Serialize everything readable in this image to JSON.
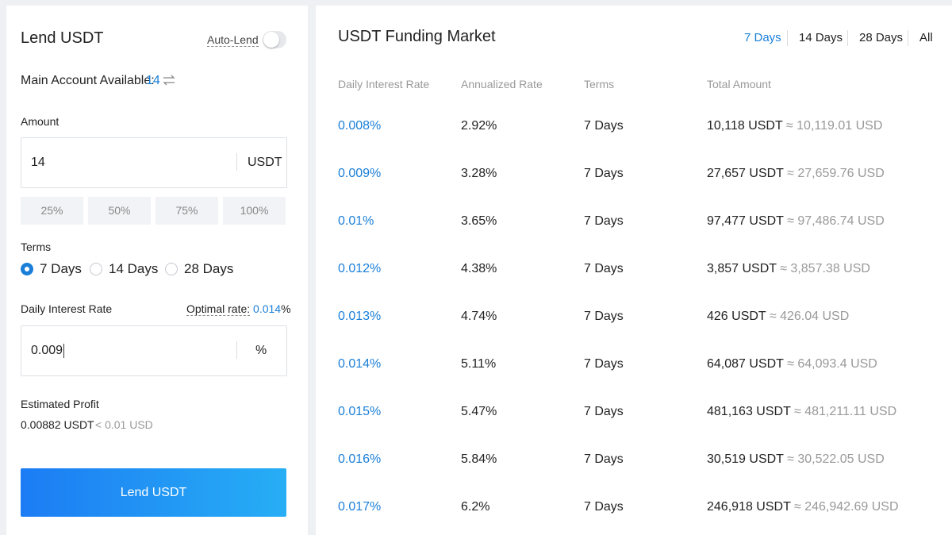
{
  "lend_panel": {
    "title": "Lend USDT",
    "auto_lend": "Auto-Lend",
    "account_label": "Main Account Available:",
    "account_value": "14",
    "amount_label": "Amount",
    "amount_value": "14",
    "amount_unit": "USDT",
    "percent_buttons": [
      "25%",
      "50%",
      "75%",
      "100%"
    ],
    "terms_label": "Terms",
    "terms_options": [
      "7 Days",
      "14 Days",
      "28 Days"
    ],
    "rate_label": "Daily Interest Rate",
    "optimal_label": "Optimal rate:",
    "optimal_value": "0.014",
    "optimal_unit": "%",
    "rate_value": "0.009",
    "rate_unit": "%",
    "profit_label": "Estimated Profit",
    "profit_value": "0.00882 USDT",
    "profit_usd": "< 0.01 USD",
    "button": "Lend USDT"
  },
  "market": {
    "title": "USDT Funding Market",
    "tabs": [
      "7 Days",
      "14 Days",
      "28 Days",
      "All"
    ],
    "columns": [
      "Daily Interest Rate",
      "Annualized Rate",
      "Terms",
      "Total Amount"
    ],
    "rows": [
      [
        "0.008%",
        "2.92%",
        "7 Days",
        "10,118 USDT",
        "≈ 10,119.01 USD"
      ],
      [
        "0.009%",
        "3.28%",
        "7 Days",
        "27,657 USDT",
        "≈ 27,659.76 USD"
      ],
      [
        "0.01%",
        "3.65%",
        "7 Days",
        "97,477 USDT",
        "≈ 97,486.74 USD"
      ],
      [
        "0.012%",
        "4.38%",
        "7 Days",
        "3,857 USDT",
        "≈ 3,857.38 USD"
      ],
      [
        "0.013%",
        "4.74%",
        "7 Days",
        "426 USDT",
        "≈ 426.04 USD"
      ],
      [
        "0.014%",
        "5.11%",
        "7 Days",
        "64,087 USDT",
        "≈ 64,093.4 USD"
      ],
      [
        "0.015%",
        "5.47%",
        "7 Days",
        "481,163 USDT",
        "≈ 481,211.11 USD"
      ],
      [
        "0.016%",
        "5.84%",
        "7 Days",
        "30,519 USDT",
        "≈ 30,522.05 USD"
      ],
      [
        "0.017%",
        "6.2%",
        "7 Days",
        "246,918 USDT",
        "≈ 246,942.69 USD"
      ]
    ]
  }
}
